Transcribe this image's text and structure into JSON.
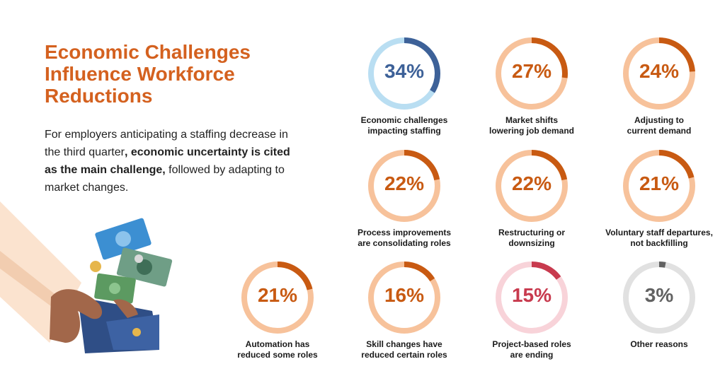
{
  "header": {
    "title_lines": [
      "Economic Challenges",
      "Influence Workforce",
      "Reductions"
    ]
  },
  "intro": {
    "lead": "For employers anticipating a staffing decrease in the third quarter",
    "highlight": ", economic uncertainty is cited as the main challenge,",
    "tail": " followed by adapting to market changes."
  },
  "colors": {
    "accent": "#d4611f",
    "ring_orange_track": "#f7c29b",
    "ring_orange_fill": "#c85a12",
    "ring_blue_track": "#b9def2",
    "ring_blue_fill": "#3d6198",
    "ring_pink_track": "#f8d3d9",
    "ring_pink_fill": "#c83a4e",
    "ring_gray_track": "#e1e1e1",
    "ring_gray_fill": "#626262"
  },
  "chart_data": {
    "type": "donut",
    "unit": "%",
    "items": [
      {
        "label_lines": [
          "Economic challenges",
          "impacting staffing"
        ],
        "value": 34,
        "display": "34%",
        "theme": "blue"
      },
      {
        "label_lines": [
          "Market shifts",
          "lowering job demand"
        ],
        "value": 27,
        "display": "27%",
        "theme": "orange"
      },
      {
        "label_lines": [
          "Adjusting to",
          "current demand"
        ],
        "value": 24,
        "display": "24%",
        "theme": "orange"
      },
      {
        "label_lines": [
          "Process improvements",
          "are consolidating roles"
        ],
        "value": 22,
        "display": "22%",
        "theme": "orange"
      },
      {
        "label_lines": [
          "Restructuring or",
          "downsizing"
        ],
        "value": 22,
        "display": "22%",
        "theme": "orange"
      },
      {
        "label_lines": [
          "Voluntary staff departures,",
          "not backfilling"
        ],
        "value": 21,
        "display": "21%",
        "theme": "orange"
      },
      {
        "label_lines": [
          "Automation has",
          "reduced some roles"
        ],
        "value": 21,
        "display": "21%",
        "theme": "orange"
      },
      {
        "label_lines": [
          "Skill changes have",
          "reduced certain roles"
        ],
        "value": 16,
        "display": "16%",
        "theme": "orange"
      },
      {
        "label_lines": [
          "Project-based roles",
          "are ending"
        ],
        "value": 15,
        "display": "15%",
        "theme": "pink"
      },
      {
        "label_lines": [
          "Other reasons"
        ],
        "value": 3,
        "display": "3%",
        "theme": "gray"
      }
    ]
  }
}
